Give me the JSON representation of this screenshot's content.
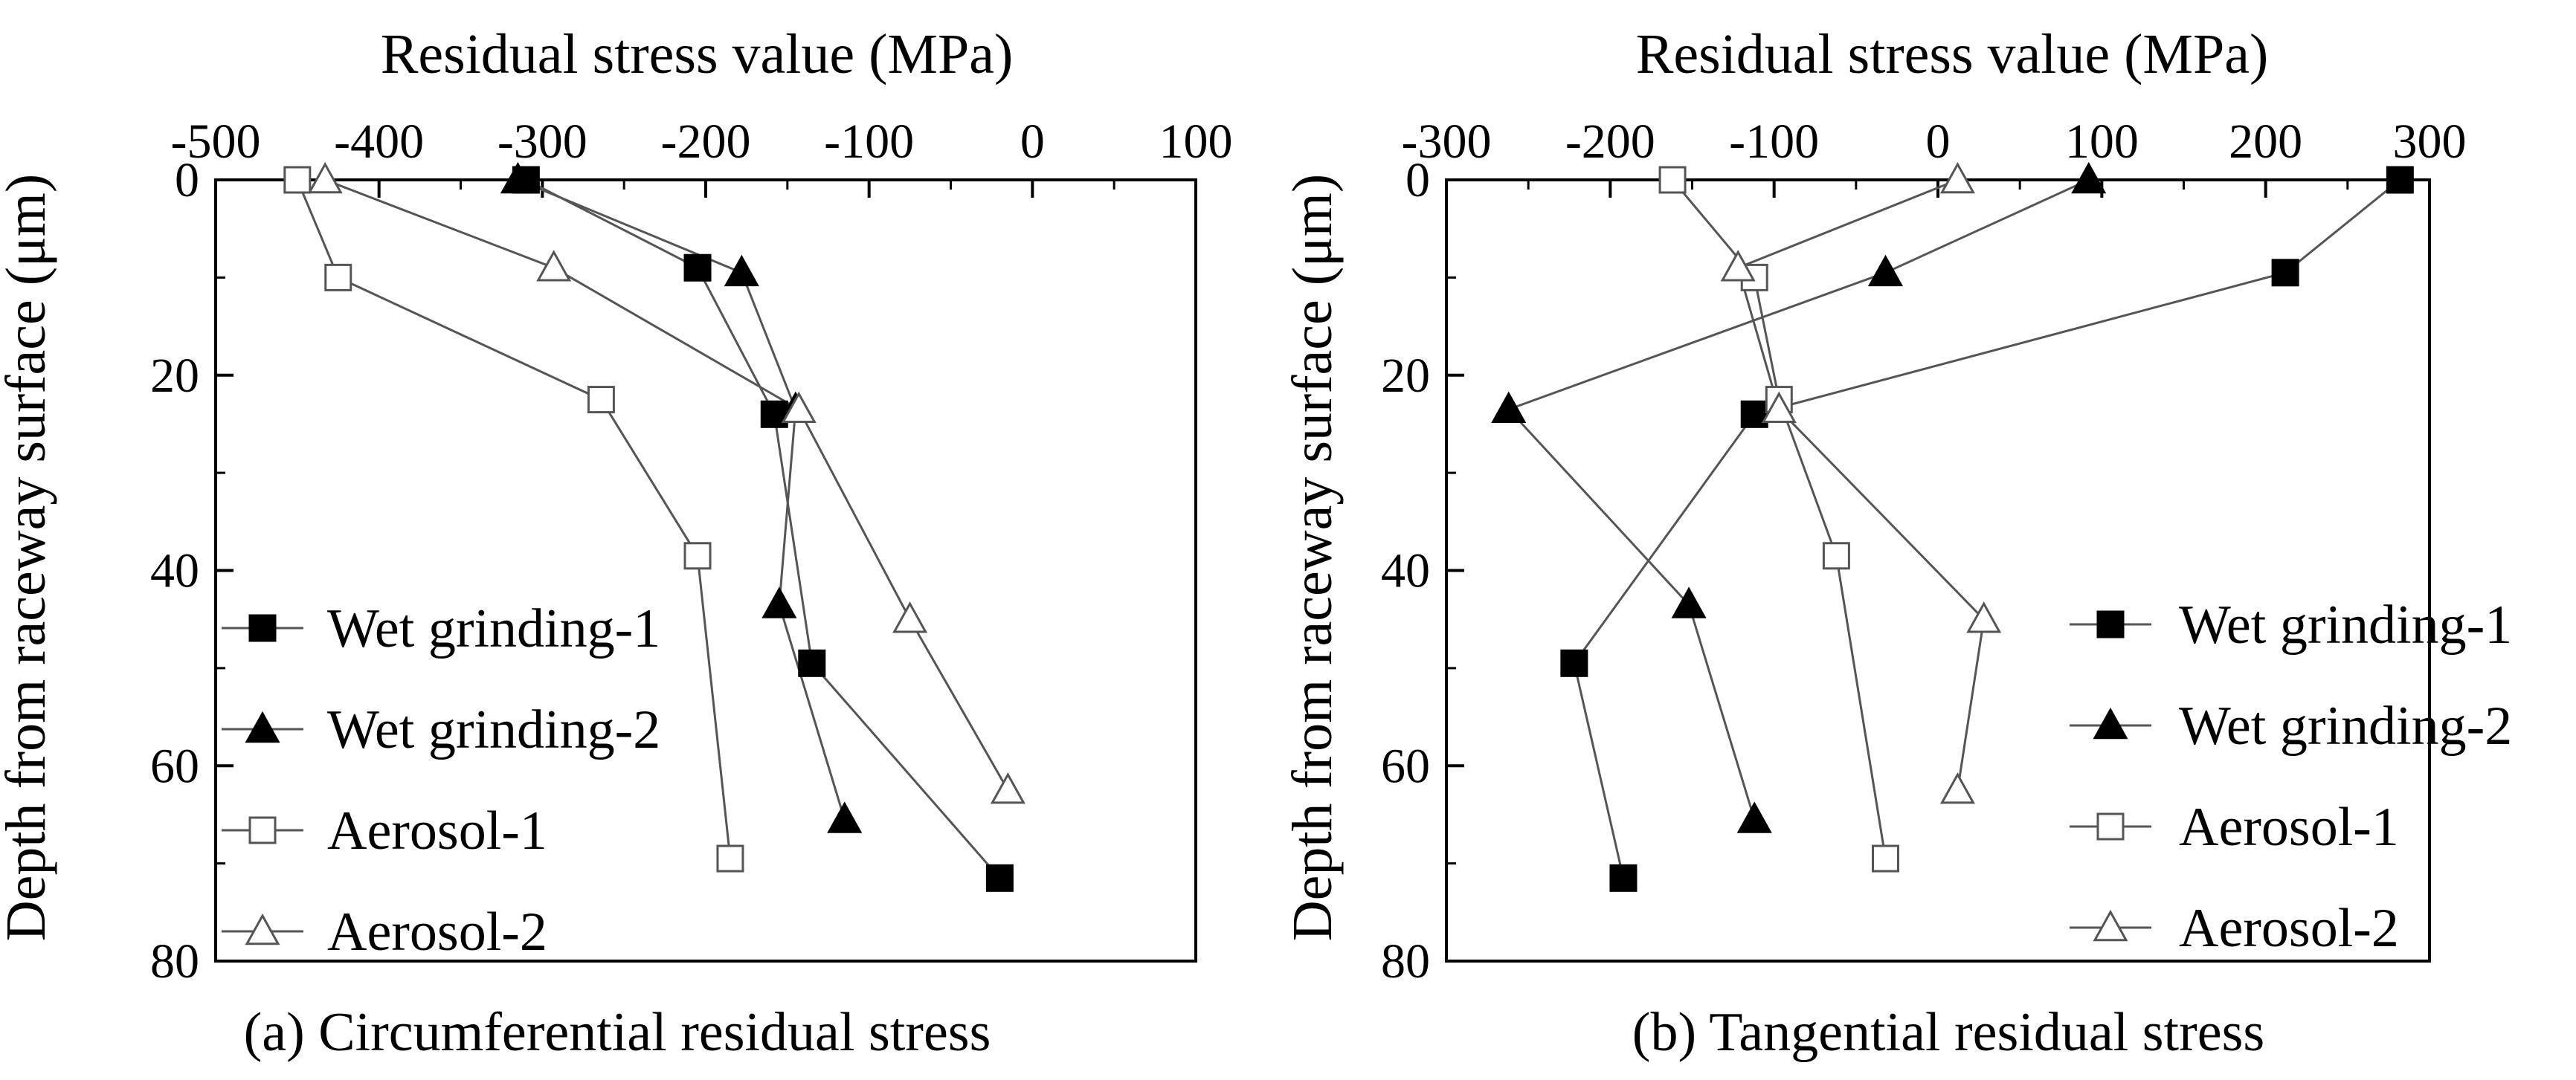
{
  "chart_data": [
    {
      "type": "line",
      "caption": "(a) Circumferential residual stress",
      "xlabel": "Residual stress value (MPa)",
      "ylabel": "Depth from raceway surface (μm)",
      "xlim": [
        -500,
        100
      ],
      "ylim": [
        0,
        80
      ],
      "xticks": [
        -500,
        -400,
        -300,
        -200,
        -100,
        0,
        100
      ],
      "yticks": [
        0,
        20,
        40,
        60,
        80
      ],
      "x_axis_position": "top",
      "y_inverted": true,
      "legend_position": "bottom-left",
      "series": [
        {
          "name": "Wet grinding-1",
          "marker": "filled-square",
          "points": [
            [
              -310,
              0
            ],
            [
              -205,
              9
            ],
            [
              -158,
              24
            ],
            [
              -135,
              49.5
            ],
            [
              -20,
              71.5
            ]
          ]
        },
        {
          "name": "Wet grinding-2",
          "marker": "filled-triangle",
          "points": [
            [
              -315,
              0
            ],
            [
              -178,
              9.5
            ],
            [
              -145,
              23.5
            ],
            [
              -155,
              43.5
            ],
            [
              -115,
              65.5
            ]
          ]
        },
        {
          "name": "Aerosol-1",
          "marker": "open-square",
          "points": [
            [
              -450,
              0
            ],
            [
              -425,
              10
            ],
            [
              -264,
              22.5
            ],
            [
              -205,
              38.5
            ],
            [
              -185,
              69.5
            ]
          ]
        },
        {
          "name": "Aerosol-2",
          "marker": "open-triangle",
          "points": [
            [
              -433,
              0
            ],
            [
              -293,
              9
            ],
            [
              -143,
              23.5
            ],
            [
              -75,
              45
            ],
            [
              -15,
              62.5
            ]
          ]
        }
      ]
    },
    {
      "type": "line",
      "caption": "(b) Tangential residual stress",
      "xlabel": "Residual stress value (MPa)",
      "ylabel": "Depth from raceway surface (μm)",
      "xlim": [
        -300,
        300
      ],
      "ylim": [
        0,
        80
      ],
      "xticks": [
        -300,
        -200,
        -100,
        0,
        100,
        200,
        300
      ],
      "yticks": [
        0,
        20,
        40,
        60,
        80
      ],
      "x_axis_position": "top",
      "y_inverted": true,
      "legend_position": "center-right",
      "series": [
        {
          "name": "Wet grinding-1",
          "marker": "filled-square",
          "points": [
            [
              282,
              0
            ],
            [
              212,
              9.5
            ],
            [
              -112,
              24
            ],
            [
              -222,
              49.5
            ],
            [
              -192,
              71.5
            ]
          ]
        },
        {
          "name": "Wet grinding-2",
          "marker": "filled-triangle",
          "points": [
            [
              92,
              0
            ],
            [
              -32,
              9.5
            ],
            [
              -262,
              23.5
            ],
            [
              -152,
              43.5
            ],
            [
              -112,
              65.5
            ]
          ]
        },
        {
          "name": "Aerosol-1",
          "marker": "open-square",
          "points": [
            [
              -162,
              0
            ],
            [
              -112,
              10
            ],
            [
              -97,
              22.5
            ],
            [
              -62,
              38.5
            ],
            [
              -32,
              69.5
            ]
          ]
        },
        {
          "name": "Aerosol-2",
          "marker": "open-triangle",
          "points": [
            [
              12,
              0
            ],
            [
              -122,
              9
            ],
            [
              -97,
              23.5
            ],
            [
              28,
              45
            ],
            [
              12,
              62.5
            ]
          ]
        }
      ]
    }
  ]
}
